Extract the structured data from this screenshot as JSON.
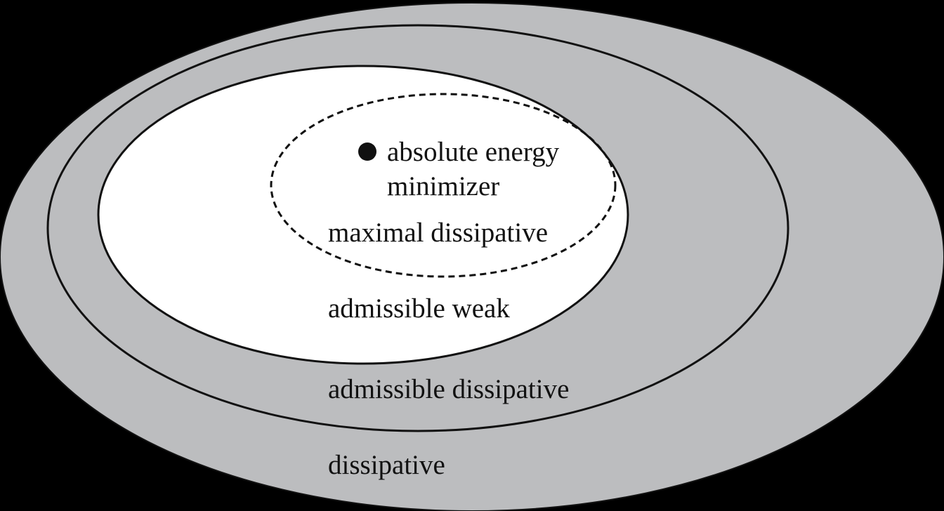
{
  "labels": {
    "dissipative": "dissipative",
    "admissible_dissipative": "admissible dissipative",
    "admissible_weak": "admissible weak",
    "maximal_dissipative": "maximal dissipative",
    "minimizer_line1": "absolute energy",
    "minimizer_line2": "minimizer"
  },
  "colors": {
    "background": "#000000",
    "outer_fill": "#bcbdbf",
    "inner_fill": "#ffffff",
    "stroke": "#111111"
  }
}
